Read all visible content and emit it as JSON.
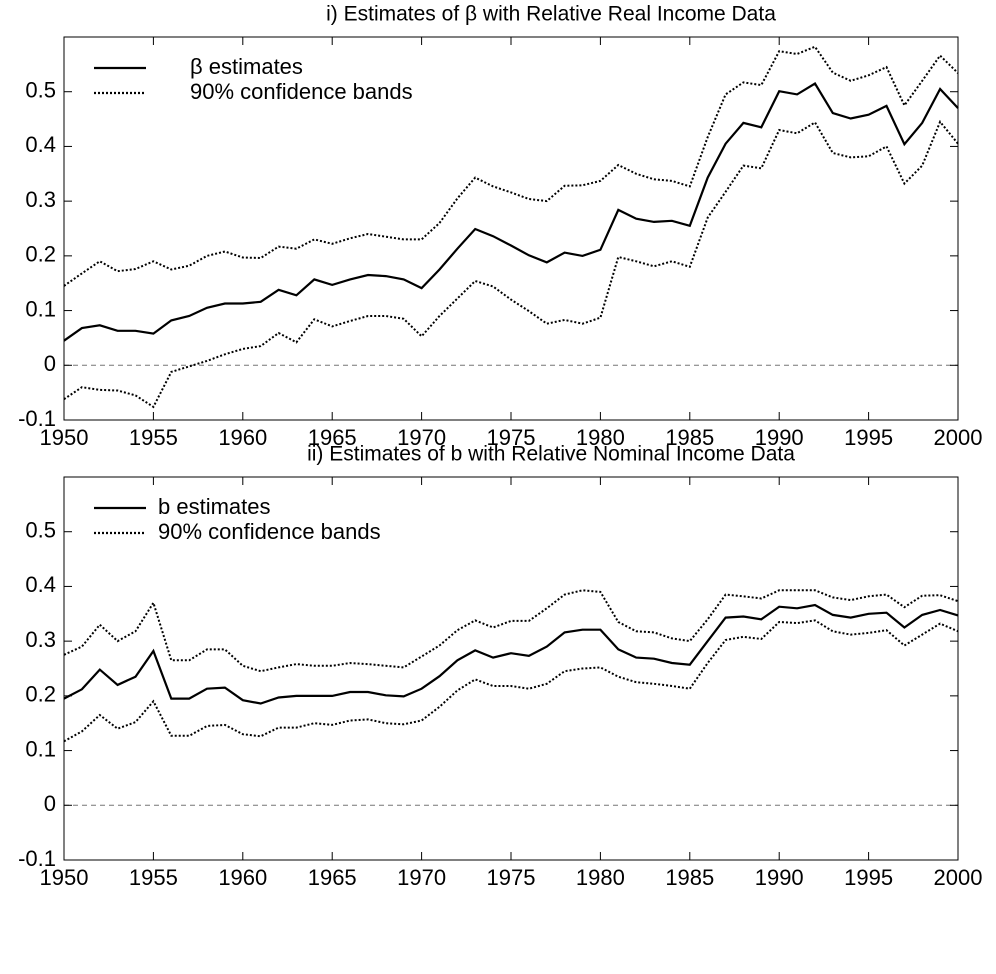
{
  "chart_data": [
    {
      "type": "line",
      "title": "i) Estimates of β with Relative Real Income Data",
      "x": [
        1950,
        1951,
        1952,
        1953,
        1954,
        1955,
        1956,
        1957,
        1958,
        1959,
        1960,
        1961,
        1962,
        1963,
        1964,
        1965,
        1966,
        1967,
        1968,
        1969,
        1970,
        1971,
        1972,
        1973,
        1974,
        1975,
        1976,
        1977,
        1978,
        1979,
        1980,
        1981,
        1982,
        1983,
        1984,
        1985,
        1986,
        1987,
        1988,
        1989,
        1990,
        1991,
        1992,
        1993,
        1994,
        1995,
        1996,
        1997,
        1998,
        1999,
        2000
      ],
      "series": [
        {
          "name": "β estimates",
          "color": "#000000",
          "dash": "solid",
          "values": [
            0.045,
            0.068,
            0.073,
            0.063,
            0.063,
            0.058,
            0.082,
            0.09,
            0.105,
            0.113,
            0.113,
            0.116,
            0.138,
            0.128,
            0.157,
            0.147,
            0.157,
            0.165,
            0.163,
            0.157,
            0.141,
            0.175,
            0.213,
            0.249,
            0.236,
            0.219,
            0.201,
            0.188,
            0.206,
            0.2,
            0.211,
            0.284,
            0.268,
            0.262,
            0.264,
            0.255,
            0.343,
            0.405,
            0.443,
            0.435,
            0.501,
            0.495,
            0.515,
            0.461,
            0.451,
            0.458,
            0.474,
            0.404,
            0.443,
            0.505,
            0.47
          ]
        },
        {
          "name": "90% confidence bands",
          "color": "#000000",
          "dash": "dotted",
          "values": [
            0.145,
            0.168,
            0.19,
            0.172,
            0.176,
            0.19,
            0.175,
            0.182,
            0.2,
            0.208,
            0.197,
            0.196,
            0.217,
            0.213,
            0.23,
            0.222,
            0.232,
            0.24,
            0.235,
            0.23,
            0.23,
            0.26,
            0.305,
            0.343,
            0.327,
            0.316,
            0.304,
            0.3,
            0.328,
            0.329,
            0.337,
            0.366,
            0.35,
            0.34,
            0.337,
            0.327,
            0.417,
            0.495,
            0.517,
            0.512,
            0.574,
            0.569,
            0.582,
            0.535,
            0.52,
            0.53,
            0.545,
            0.475,
            0.52,
            0.566,
            0.534
          ]
        },
        {
          "color": "#000000",
          "dash": "dotted",
          "values": [
            -0.062,
            -0.04,
            -0.045,
            -0.046,
            -0.055,
            -0.076,
            -0.012,
            -0.002,
            0.008,
            0.02,
            0.03,
            0.035,
            0.059,
            0.042,
            0.084,
            0.071,
            0.081,
            0.09,
            0.09,
            0.085,
            0.053,
            0.09,
            0.122,
            0.154,
            0.144,
            0.12,
            0.099,
            0.076,
            0.083,
            0.076,
            0.087,
            0.198,
            0.19,
            0.181,
            0.19,
            0.18,
            0.27,
            0.317,
            0.365,
            0.36,
            0.43,
            0.424,
            0.444,
            0.388,
            0.38,
            0.382,
            0.4,
            0.332,
            0.365,
            0.445,
            0.405
          ]
        }
      ],
      "xlim": [
        1950,
        2000
      ],
      "xticks": [
        1950,
        1955,
        1960,
        1965,
        1970,
        1975,
        1980,
        1985,
        1990,
        1995,
        2000
      ],
      "ylim": [
        -0.1,
        0.6
      ],
      "yticks": [
        -0.1,
        0,
        0.1,
        0.2,
        0.3,
        0.4,
        0.5
      ],
      "hline": 0,
      "legend": "upper left"
    },
    {
      "type": "line",
      "title": "ii) Estimates of b with Relative Nominal Income Data",
      "x": [
        1950,
        1951,
        1952,
        1953,
        1954,
        1955,
        1956,
        1957,
        1958,
        1959,
        1960,
        1961,
        1962,
        1963,
        1964,
        1965,
        1966,
        1967,
        1968,
        1969,
        1970,
        1971,
        1972,
        1973,
        1974,
        1975,
        1976,
        1977,
        1978,
        1979,
        1980,
        1981,
        1982,
        1983,
        1984,
        1985,
        1986,
        1987,
        1988,
        1989,
        1990,
        1991,
        1992,
        1993,
        1994,
        1995,
        1996,
        1997,
        1998,
        1999,
        2000
      ],
      "series": [
        {
          "name": "b estimates",
          "color": "#000000",
          "dash": "solid",
          "values": [
            0.195,
            0.212,
            0.248,
            0.22,
            0.235,
            0.282,
            0.195,
            0.195,
            0.213,
            0.215,
            0.192,
            0.186,
            0.197,
            0.2,
            0.2,
            0.2,
            0.207,
            0.207,
            0.201,
            0.199,
            0.213,
            0.236,
            0.265,
            0.283,
            0.27,
            0.278,
            0.273,
            0.29,
            0.316,
            0.321,
            0.321,
            0.285,
            0.27,
            0.268,
            0.26,
            0.257,
            0.3,
            0.343,
            0.345,
            0.34,
            0.363,
            0.36,
            0.366,
            0.348,
            0.343,
            0.35,
            0.352,
            0.325,
            0.348,
            0.357,
            0.347
          ]
        },
        {
          "name": "90% confidence bands",
          "color": "#000000",
          "dash": "dotted",
          "values": [
            0.275,
            0.29,
            0.33,
            0.3,
            0.318,
            0.37,
            0.265,
            0.265,
            0.285,
            0.285,
            0.255,
            0.245,
            0.252,
            0.258,
            0.255,
            0.255,
            0.26,
            0.258,
            0.255,
            0.252,
            0.272,
            0.292,
            0.32,
            0.338,
            0.325,
            0.337,
            0.337,
            0.36,
            0.385,
            0.393,
            0.39,
            0.335,
            0.318,
            0.316,
            0.305,
            0.3,
            0.34,
            0.385,
            0.382,
            0.378,
            0.393,
            0.393,
            0.393,
            0.38,
            0.375,
            0.382,
            0.385,
            0.362,
            0.383,
            0.384,
            0.373
          ]
        },
        {
          "color": "#000000",
          "dash": "dotted",
          "values": [
            0.117,
            0.135,
            0.165,
            0.14,
            0.152,
            0.19,
            0.127,
            0.127,
            0.145,
            0.147,
            0.13,
            0.126,
            0.142,
            0.142,
            0.15,
            0.147,
            0.155,
            0.157,
            0.15,
            0.148,
            0.155,
            0.18,
            0.21,
            0.23,
            0.218,
            0.218,
            0.213,
            0.222,
            0.245,
            0.25,
            0.252,
            0.235,
            0.225,
            0.222,
            0.218,
            0.213,
            0.26,
            0.302,
            0.308,
            0.304,
            0.335,
            0.333,
            0.338,
            0.318,
            0.312,
            0.315,
            0.32,
            0.292,
            0.312,
            0.332,
            0.318
          ]
        }
      ],
      "xlim": [
        1950,
        2000
      ],
      "xticks": [
        1950,
        1955,
        1960,
        1965,
        1970,
        1975,
        1980,
        1985,
        1990,
        1995,
        2000
      ],
      "ylim": [
        -0.1,
        0.6
      ],
      "yticks": [
        -0.1,
        0,
        0.1,
        0.2,
        0.3,
        0.4,
        0.5
      ],
      "hline": 0,
      "legend": "upper left"
    }
  ]
}
